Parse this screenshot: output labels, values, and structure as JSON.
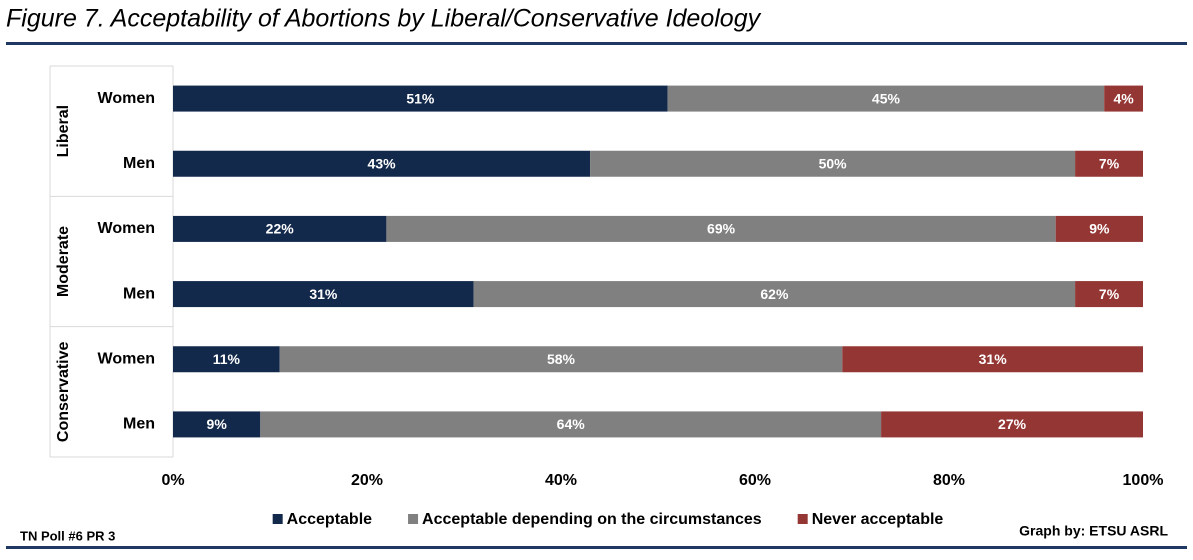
{
  "chart_data": {
    "type": "stacked_bar_horizontal",
    "title": "Figure 7. Acceptability of Abortions by Liberal/Conservative Ideology",
    "groups": [
      "Liberal",
      "Moderate",
      "Conservative"
    ],
    "categories": [
      "Women",
      "Men",
      "Women",
      "Men",
      "Women",
      "Men"
    ],
    "series": [
      {
        "name": "Acceptable",
        "color": "#13294b",
        "values": [
          51,
          43,
          22,
          31,
          11,
          9
        ],
        "value_labels": [
          "51%",
          "43%",
          "22%",
          "31%",
          "11%",
          "9%"
        ]
      },
      {
        "name": "Acceptable depending on the circumstances",
        "color": "#808080",
        "values": [
          45,
          50,
          69,
          62,
          58,
          64
        ],
        "value_labels": [
          "45%",
          "50%",
          "69%",
          "62%",
          "58%",
          "64%"
        ]
      },
      {
        "name": "Never acceptable",
        "color": "#943634",
        "values": [
          4,
          7,
          9,
          7,
          31,
          27
        ],
        "value_labels": [
          "4%",
          "7%",
          "9%",
          "7%",
          "31%",
          "27%"
        ]
      }
    ],
    "xlim": [
      0,
      100
    ],
    "xticks": [
      {
        "value": 0,
        "label": "0%"
      },
      {
        "value": 20,
        "label": "20%"
      },
      {
        "value": 40,
        "label": "40%"
      },
      {
        "value": 60,
        "label": "60%"
      },
      {
        "value": 80,
        "label": "80%"
      },
      {
        "value": 100,
        "label": "100%"
      }
    ],
    "legend": "bottom",
    "source_left": "TN Poll #6 PR 3",
    "source_right": "Graph by: ETSU ASRL"
  }
}
